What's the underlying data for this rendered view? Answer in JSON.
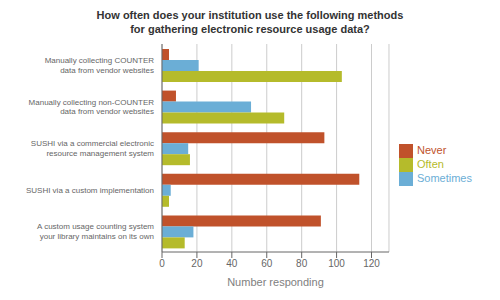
{
  "chart_data": {
    "type": "bar",
    "orientation": "horizontal",
    "title": "How often does your institution use the following methods\nfor gathering electronic resource usage data?",
    "categories": [
      "Manually collecting COUNTER\ndata from vendor websites",
      "Manually collecting non-COUNTER\ndata from vendor websites",
      "SUSHI via a commercial electronic\nresource management system",
      "SUSHI via a custom implementation",
      "A custom usage counting system\nyour library maintains on its own"
    ],
    "series": [
      {
        "name": "Never",
        "color": "#c0522b",
        "values": [
          4,
          8,
          93,
          113,
          91
        ]
      },
      {
        "name": "Sometimes",
        "color": "#6baed6",
        "values": [
          21,
          51,
          15,
          5,
          18
        ]
      },
      {
        "name": "Often",
        "color": "#b5bb2b",
        "values": [
          103,
          70,
          16,
          4,
          13
        ]
      }
    ],
    "xlabel": "Number responding",
    "xlim": [
      0,
      130
    ],
    "xticks": [
      0,
      20,
      40,
      60,
      80,
      100,
      120
    ],
    "grid": true,
    "legend": "right"
  }
}
